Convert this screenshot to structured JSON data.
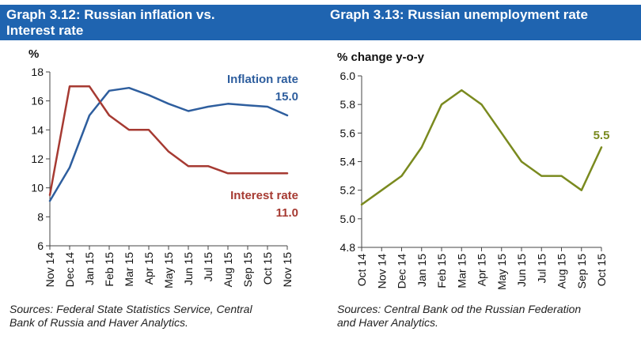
{
  "panels": [
    {
      "title_line1": "Graph 3.12: Russian inflation vs.",
      "title_line2": "Interest rate",
      "source_line1": "Sources: Federal State Statistics Service, Central",
      "source_line2": "Bank of Russia and Haver Analytics."
    },
    {
      "title_line1": "Graph 3.13: Russian unemployment rate",
      "title_line2": "",
      "source_line1": "Sources: Central Bank od the Russian Federation",
      "source_line2": "and Haver Analytics."
    }
  ],
  "chart_data": [
    {
      "type": "line",
      "title": "Graph 3.12: Russian inflation vs. Interest rate",
      "ylabel": "%",
      "ylim": [
        6,
        18
      ],
      "yticks": [
        "6",
        "8",
        "10",
        "12",
        "14",
        "16",
        "18"
      ],
      "categories": [
        "Nov 14",
        "Dec 14",
        "Jan 15",
        "Feb 15",
        "Mar 15",
        "Apr 15",
        "May 15",
        "Jun 15",
        "Jul 15",
        "Aug 15",
        "Sep 15",
        "Oct 15",
        "Nov 15"
      ],
      "series": [
        {
          "name": "Inflation rate",
          "color": "#2e5e9e",
          "end_label": "15.0",
          "values": [
            9.1,
            11.4,
            15.0,
            16.7,
            16.9,
            16.4,
            15.8,
            15.3,
            15.6,
            15.8,
            15.7,
            15.6,
            15.0
          ]
        },
        {
          "name": "Interest rate",
          "color": "#a63a32",
          "end_label": "11.0",
          "values": [
            9.5,
            17.0,
            17.0,
            15.0,
            14.0,
            14.0,
            12.5,
            11.5,
            11.5,
            11.0,
            11.0,
            11.0,
            11.0
          ]
        }
      ]
    },
    {
      "type": "line",
      "title": "Graph 3.13: Russian unemployment rate",
      "ylabel": "% change y-o-y",
      "ylim": [
        4.8,
        6.0
      ],
      "yticks": [
        "4.8",
        "5.0",
        "5.2",
        "5.4",
        "5.6",
        "5.8",
        "6.0"
      ],
      "categories": [
        "Oct 14",
        "Nov 14",
        "Dec 14",
        "Jan 15",
        "Feb 15",
        "Mar 15",
        "Apr 15",
        "May 15",
        "Jun 15",
        "Jul 15",
        "Aug 15",
        "Sep 15",
        "Oct 15"
      ],
      "series": [
        {
          "name": "Unemployment rate",
          "color": "#7a8a1f",
          "end_label": "5.5",
          "values": [
            5.1,
            5.2,
            5.3,
            5.5,
            5.8,
            5.9,
            5.8,
            5.6,
            5.4,
            5.3,
            5.3,
            5.2,
            5.5
          ]
        }
      ]
    }
  ]
}
